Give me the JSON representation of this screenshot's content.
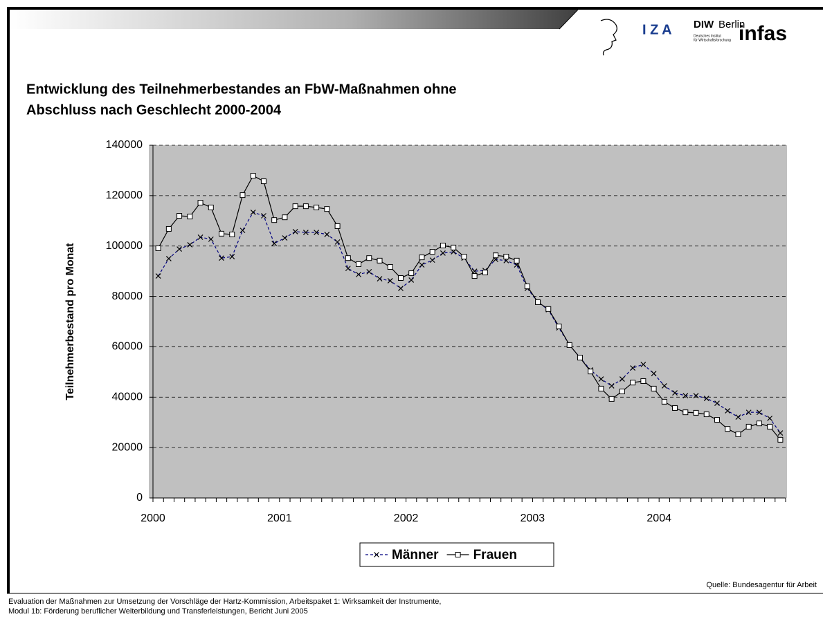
{
  "header": {
    "logos": [
      "I Z A",
      "DIW",
      "Berlin",
      "Deutsches Institut",
      "für Wirtschaftsforschung",
      "infas"
    ]
  },
  "chart_data": {
    "type": "line",
    "title": [
      "Entwicklung des Teilnehmerbestandes an FbW-Maßnahmen ohne",
      "Abschluss nach Geschlecht 2000-2004"
    ],
    "y_label": "Teilnehmerbestand pro Monat",
    "categories": [
      "2000",
      null,
      null,
      null,
      null,
      null,
      null,
      null,
      null,
      null,
      null,
      null,
      "2001",
      null,
      null,
      null,
      null,
      null,
      null,
      null,
      null,
      null,
      null,
      null,
      "2002",
      null,
      null,
      null,
      null,
      null,
      null,
      null,
      null,
      null,
      null,
      null,
      "2003",
      null,
      null,
      null,
      null,
      null,
      null,
      null,
      null,
      null,
      null,
      null,
      "2004",
      null,
      null,
      null,
      null,
      null,
      null,
      null,
      null,
      null,
      null,
      null
    ],
    "ylim": [
      0,
      140000
    ],
    "yticks": [
      0,
      20000,
      40000,
      60000,
      80000,
      100000,
      120000,
      140000
    ],
    "grid": true,
    "series": [
      {
        "name": "Männer",
        "color": "#000080",
        "marker": "x",
        "values": [
          88100,
          95000,
          98800,
          100500,
          103500,
          102700,
          95200,
          95800,
          106200,
          113400,
          112000,
          101000,
          103200,
          105700,
          105400,
          105400,
          104600,
          101600,
          91100,
          88700,
          89800,
          87000,
          86200,
          83200,
          86500,
          92500,
          94400,
          97200,
          97700,
          95200,
          90000,
          90300,
          94700,
          94200,
          92500,
          83200,
          77700,
          74700,
          67500,
          60700,
          55700,
          50800,
          47200,
          44500,
          47200,
          51600,
          53000,
          49400,
          44500,
          41700,
          40600,
          40600,
          39500,
          37600,
          34600,
          32100,
          34000,
          34000,
          31600,
          25800
        ]
      },
      {
        "name": "Frauen",
        "color": "#000000",
        "marker": "square",
        "values": [
          99100,
          106800,
          112000,
          111700,
          117200,
          115300,
          104900,
          104600,
          120200,
          127900,
          125700,
          110300,
          111400,
          115800,
          115800,
          115300,
          114700,
          107900,
          95200,
          92800,
          95200,
          94200,
          91700,
          87300,
          89200,
          95500,
          97700,
          100200,
          99400,
          95800,
          88100,
          89500,
          96300,
          95800,
          94200,
          84000,
          77700,
          75000,
          68100,
          60700,
          55700,
          50200,
          43400,
          39300,
          42300,
          45800,
          46400,
          43400,
          38200,
          35700,
          34000,
          33800,
          33200,
          31000,
          27400,
          25300,
          28300,
          29600,
          28300,
          23100
        ]
      }
    ],
    "source": "Quelle: Bundesagentur für Arbeit"
  },
  "footer": [
    "Evaluation der Maßnahmen zur Umsetzung der Vorschläge der Hartz-Kommission, Arbeitspaket 1: Wirksamkeit der Instrumente,",
    "Modul 1b: Förderung beruflicher Weiterbildung und Transferleistungen, Bericht Juni 2005"
  ]
}
